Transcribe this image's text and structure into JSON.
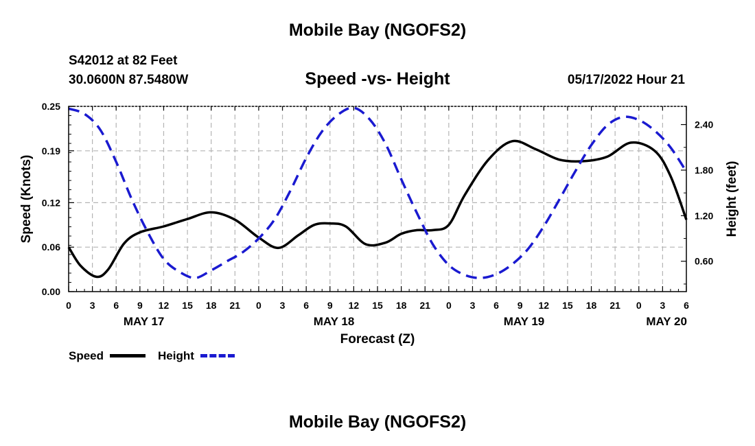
{
  "header": {
    "title": "Mobile Bay (NGOFS2)",
    "station": "S42012 at 82 Feet",
    "coords": "30.0600N  87.5480W",
    "subtitle": "Speed -vs- Height",
    "datetime": "05/17/2022 Hour 21"
  },
  "footer": {
    "title": "Mobile Bay (NGOFS2)"
  },
  "legend": {
    "speed": "Speed",
    "height": "Height"
  },
  "colors": {
    "speed": "#000000",
    "height": "#1a1ad0",
    "grid": "#b4b4b4"
  },
  "chart_data": {
    "type": "line",
    "title": "Speed -vs- Height",
    "xlabel": "Forecast (Z)",
    "ylabel": "Speed (Knots)",
    "y2label": "Height (feet)",
    "xlim": [
      0,
      78
    ],
    "ylim": [
      0,
      0.25
    ],
    "y2lim": [
      0.2,
      2.64
    ],
    "yticks": [
      0.0,
      0.06,
      0.12,
      0.19,
      0.25
    ],
    "yticklabels": [
      "0.00",
      "0.06",
      "0.12",
      "0.19",
      "0.25"
    ],
    "y2ticks": [
      0.6,
      1.2,
      1.8,
      2.4
    ],
    "y2ticklabels": [
      "0.60",
      "1.20",
      "1.80",
      "2.40"
    ],
    "xticks": [
      0,
      3,
      6,
      9,
      12,
      15,
      18,
      21,
      24,
      27,
      30,
      33,
      36,
      39,
      42,
      45,
      48,
      51,
      54,
      57,
      60,
      63,
      66,
      69,
      72,
      75,
      78
    ],
    "xticklabels": [
      "0",
      "3",
      "6",
      "9",
      "12",
      "15",
      "18",
      "21",
      "0",
      "3",
      "6",
      "9",
      "12",
      "15",
      "18",
      "21",
      "0",
      "3",
      "6",
      "9",
      "12",
      "15",
      "18",
      "21",
      "0",
      "3",
      "6"
    ],
    "day_labels": [
      {
        "x": 9.5,
        "label": "MAY 17"
      },
      {
        "x": 33.5,
        "label": "MAY 18"
      },
      {
        "x": 57.5,
        "label": "MAY 19"
      },
      {
        "x": 75.5,
        "label": "MAY 20"
      }
    ],
    "series": [
      {
        "name": "Speed",
        "axis": "left",
        "style": "solid",
        "x": [
          0,
          1.5,
          3.5,
          5,
          7,
          9,
          12,
          15,
          18,
          21,
          24,
          26.5,
          29,
          31,
          33,
          35,
          37.5,
          40,
          42,
          44,
          46,
          48,
          50,
          53,
          56,
          59,
          62,
          65,
          68,
          71,
          74,
          76,
          78
        ],
        "values": [
          0.06,
          0.035,
          0.02,
          0.03,
          0.065,
          0.08,
          0.088,
          0.098,
          0.107,
          0.097,
          0.073,
          0.059,
          0.076,
          0.09,
          0.092,
          0.088,
          0.064,
          0.066,
          0.078,
          0.083,
          0.083,
          0.09,
          0.13,
          0.178,
          0.203,
          0.192,
          0.178,
          0.176,
          0.182,
          0.201,
          0.19,
          0.156,
          0.097
        ]
      },
      {
        "name": "Height",
        "axis": "right",
        "style": "dashed",
        "x": [
          0,
          2,
          4,
          6,
          8,
          10,
          12,
          14,
          16,
          18,
          20,
          22,
          24,
          26,
          28,
          30,
          32,
          34,
          36,
          38,
          40,
          42,
          44,
          46,
          48,
          50,
          52,
          54,
          56,
          58,
          60,
          62,
          64,
          66,
          68,
          70,
          72,
          74,
          76,
          78
        ],
        "values": [
          2.61,
          2.54,
          2.33,
          1.91,
          1.41,
          0.98,
          0.63,
          0.46,
          0.38,
          0.48,
          0.6,
          0.72,
          0.9,
          1.15,
          1.53,
          1.96,
          2.31,
          2.53,
          2.62,
          2.47,
          2.15,
          1.68,
          1.23,
          0.82,
          0.55,
          0.42,
          0.38,
          0.43,
          0.56,
          0.76,
          1.06,
          1.42,
          1.79,
          2.13,
          2.39,
          2.5,
          2.46,
          2.32,
          2.1,
          1.78
        ]
      }
    ]
  }
}
